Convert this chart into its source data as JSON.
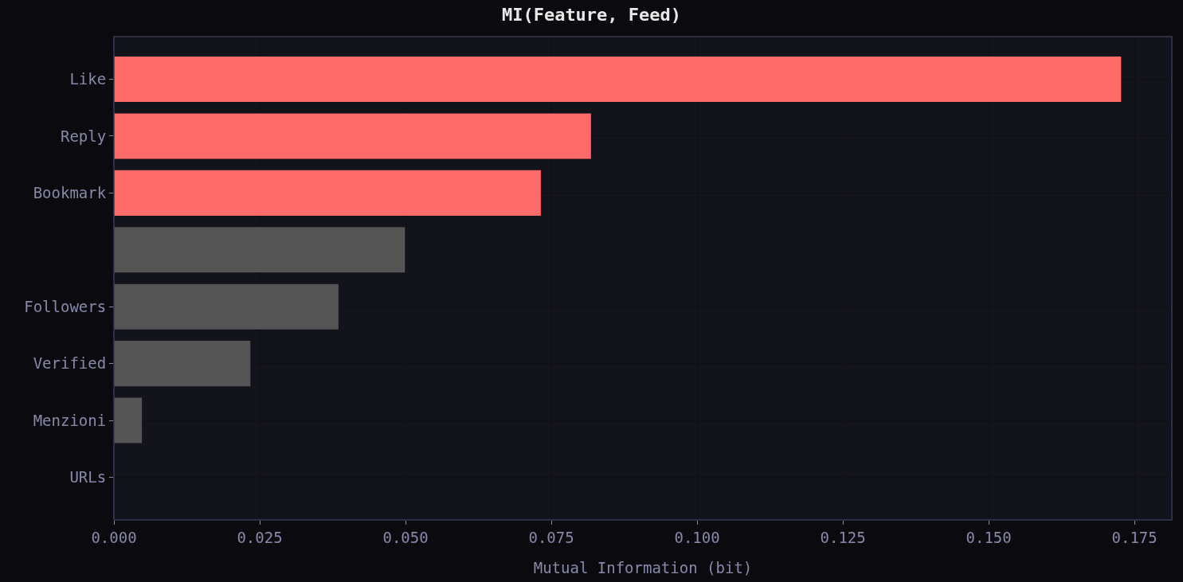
{
  "chart_data": {
    "type": "bar",
    "orientation": "horizontal",
    "title": "MI(Feature, Feed)",
    "xlabel": "Mutual Information (bit)",
    "categories": [
      "Like",
      "Reply",
      "Bookmark",
      null,
      "Followers",
      "Verified",
      "Menzioni",
      "URLs"
    ],
    "values": [
      0.1727,
      0.0818,
      0.0732,
      0.0499,
      0.0385,
      0.0234,
      0.0048,
      0
    ],
    "colors": [
      "#ff6b6b",
      "#ff6b6b",
      "#ff6b6b",
      "#555555",
      "#555555",
      "#555555",
      "#555555",
      "#555555"
    ],
    "xlim": [
      0,
      0.1814
    ],
    "xticks": [
      {
        "value": 0,
        "label": "0.000"
      },
      {
        "value": 0.025,
        "label": "0.025"
      },
      {
        "value": 0.05,
        "label": "0.050"
      },
      {
        "value": 0.075,
        "label": "0.075"
      },
      {
        "value": 0.1,
        "label": "0.100"
      },
      {
        "value": 0.125,
        "label": "0.125"
      },
      {
        "value": 0.15,
        "label": "0.150"
      },
      {
        "value": 0.175,
        "label": "0.175"
      }
    ],
    "grid": true,
    "legend": false
  }
}
